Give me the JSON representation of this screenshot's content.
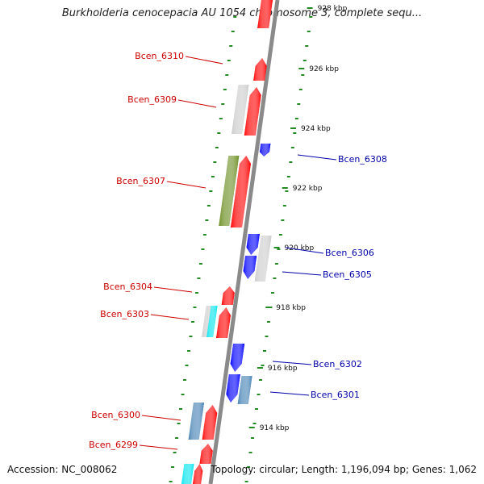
{
  "title": "Burkholderia cenocepacia AU 1054 chromosome 3, complete sequ...",
  "footer": {
    "accession_label": "Accession:",
    "accession": "NC_008062",
    "topology_label": "Topology:",
    "topology": "circular",
    "length_label": "Length:",
    "length": "1,196,094 bp",
    "genes_label": "Genes:",
    "genes": "1,062"
  },
  "scale_ticks": [
    "928 kbp",
    "926 kbp",
    "924 kbp",
    "922 kbp",
    "920 kbp",
    "918 kbp",
    "916 kbp",
    "914 kbp"
  ],
  "gene_labels_left": [
    "Bcen_6310",
    "Bcen_6309",
    "Bcen_6307",
    "Bcen_6304",
    "Bcen_6303",
    "Bcen_6300",
    "Bcen_6299"
  ],
  "gene_labels_right": [
    "Bcen_6308",
    "Bcen_6306",
    "Bcen_6305",
    "Bcen_6302",
    "Bcen_6301"
  ],
  "colors": {
    "forward_label": "#cc0000",
    "reverse_label": "#0000aa",
    "gene_red": "#ff0000",
    "gene_blue": "#0000ff",
    "gene_grey": "#cccccc",
    "gene_green": "#6b8e23",
    "gene_steelblue": "#4682b4",
    "gene_cyan": "#00e5ee",
    "backbone": "#888888",
    "dots": "#228b22"
  }
}
